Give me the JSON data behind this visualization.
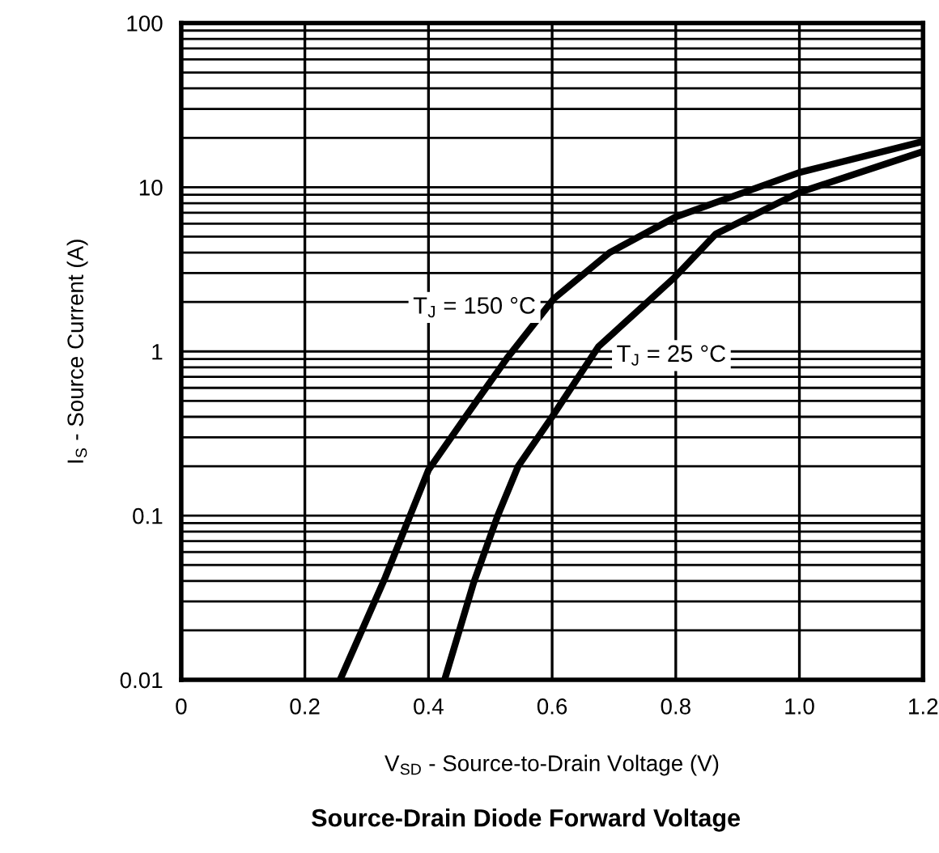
{
  "chart_data": {
    "type": "line",
    "title": "Source-Drain Diode Forward Voltage",
    "xlabel": "V$_{SD}$ - Source-to-Drain Voltage (V)",
    "ylabel": "I$_{S}$ - Source Current (A)",
    "log": "y",
    "grid": true,
    "marker": "none",
    "line_style": "solid",
    "xlim": [
      0,
      1.2
    ],
    "ylim": [
      0.01,
      100
    ],
    "xticks": [
      0,
      0.2,
      0.4,
      0.6,
      0.8,
      {
        "value": 1.0,
        "label": "1.0"
      },
      1.2
    ],
    "yticks": [
      0.01,
      0.1,
      1,
      10,
      100
    ],
    "series": [
      {
        "name": "T$_{J}$ = 150 °C",
        "color": "#000000",
        "x": [
          0.257,
          0.33,
          0.4,
          0.473,
          0.527,
          0.603,
          0.693,
          0.8,
          1.0,
          1.2
        ],
        "values": [
          0.01,
          0.042,
          0.19,
          0.47,
          0.91,
          2.1,
          4,
          6.6,
          12.3,
          19
        ]
      },
      {
        "name": "T$_{J}$ = 25 °C",
        "color": "#000000",
        "x": [
          0.426,
          0.473,
          0.512,
          0.545,
          0.6,
          0.675,
          0.797,
          0.865,
          1.0,
          1.2
        ],
        "values": [
          0.01,
          0.039,
          0.1,
          0.2,
          0.4,
          1.07,
          2.8,
          5.2,
          9.3,
          16.5
        ]
      }
    ]
  }
}
